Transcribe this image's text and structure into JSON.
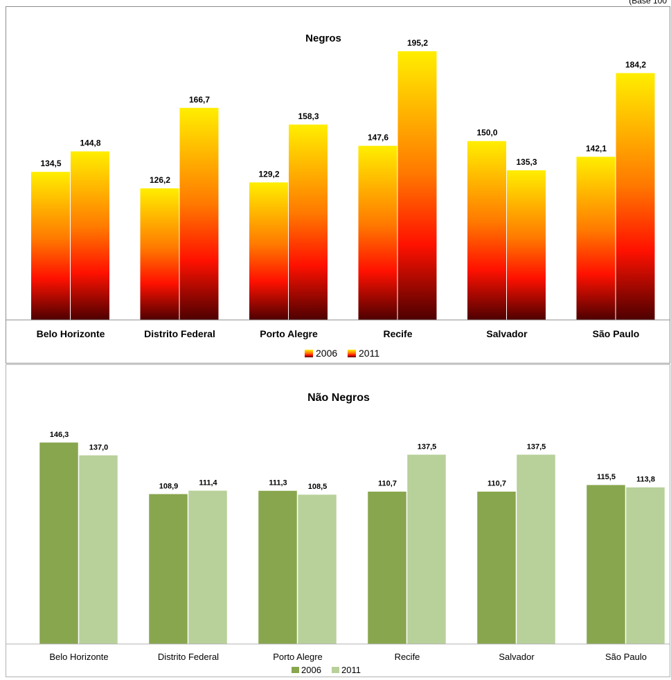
{
  "note": "(Base 100",
  "chart_data": [
    {
      "type": "bar",
      "title": "Negros",
      "categories": [
        "Belo Horizonte",
        "Distrito Federal",
        "Porto Alegre",
        "Recife",
        "Salvador",
        "São Paulo"
      ],
      "series": [
        {
          "name": "2006",
          "values": [
            134.5,
            126.2,
            129.2,
            147.6,
            150.0,
            142.1
          ],
          "labels": [
            "134,5",
            "126,2",
            "129,2",
            "147,6",
            "150,0",
            "142,1"
          ]
        },
        {
          "name": "2011",
          "values": [
            144.8,
            166.7,
            158.3,
            195.2,
            135.3,
            184.2
          ],
          "labels": [
            "144,8",
            "166,7",
            "158,3",
            "195,2",
            "135,3",
            "184,2"
          ]
        }
      ],
      "ylim": [
        0,
        200
      ],
      "grid": false,
      "legend": "bottom",
      "style": "gradient",
      "colors": {
        "top": "#ffea00",
        "mid": "#ff1a00",
        "bottom": "#5a0000"
      }
    },
    {
      "type": "bar",
      "title": "Não Negros",
      "categories": [
        "Belo Horizonte",
        "Distrito Federal",
        "Porto Alegre",
        "Recife",
        "Salvador",
        "São Paulo"
      ],
      "series": [
        {
          "name": "2006",
          "values": [
            146.3,
            108.9,
            111.3,
            110.7,
            110.7,
            115.5
          ],
          "labels": [
            "146,3",
            "108,9",
            "111,3",
            "110,7",
            "110,7",
            "115,5"
          ],
          "color": "#88a64e"
        },
        {
          "name": "2011",
          "values": [
            137.0,
            111.4,
            108.5,
            137.5,
            137.5,
            113.8
          ],
          "labels": [
            "137,0",
            "111,4",
            "108,5",
            "137,5",
            "137,5",
            "113,8"
          ],
          "color": "#b8d09a"
        }
      ],
      "ylim": [
        0,
        150
      ],
      "grid": false,
      "legend": "bottom",
      "style": "flat"
    }
  ]
}
